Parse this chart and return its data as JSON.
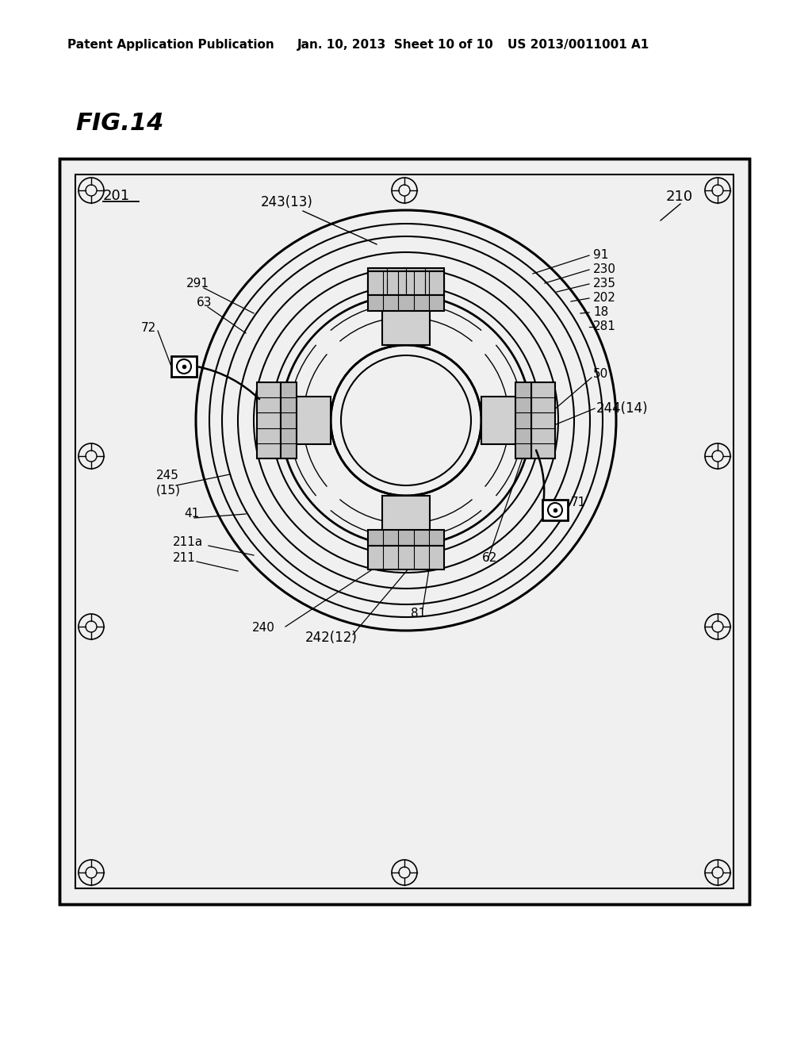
{
  "bg_color": "#ffffff",
  "line_color": "#000000",
  "title_text": "FIG.14",
  "header_left": "Patent Application Publication",
  "header_mid": "Jan. 10, 2013  Sheet 10 of 10",
  "header_right": "US 2013/0011001 A1",
  "label_201": "201",
  "label_210": "210",
  "label_243": "243(13)",
  "label_291": "291",
  "label_63": "63",
  "label_72": "72",
  "label_91": "91",
  "label_230": "230",
  "label_235": "235",
  "label_202": "202",
  "label_18": "18",
  "label_281": "281",
  "label_50": "50",
  "label_244": "244(14)",
  "label_245": "245",
  "label_15": "(15)",
  "label_41": "41",
  "label_211a": "211a",
  "label_211": "211",
  "label_240": "240",
  "label_242": "242(12)",
  "label_81": "81",
  "label_62": "62",
  "label_71": "71"
}
